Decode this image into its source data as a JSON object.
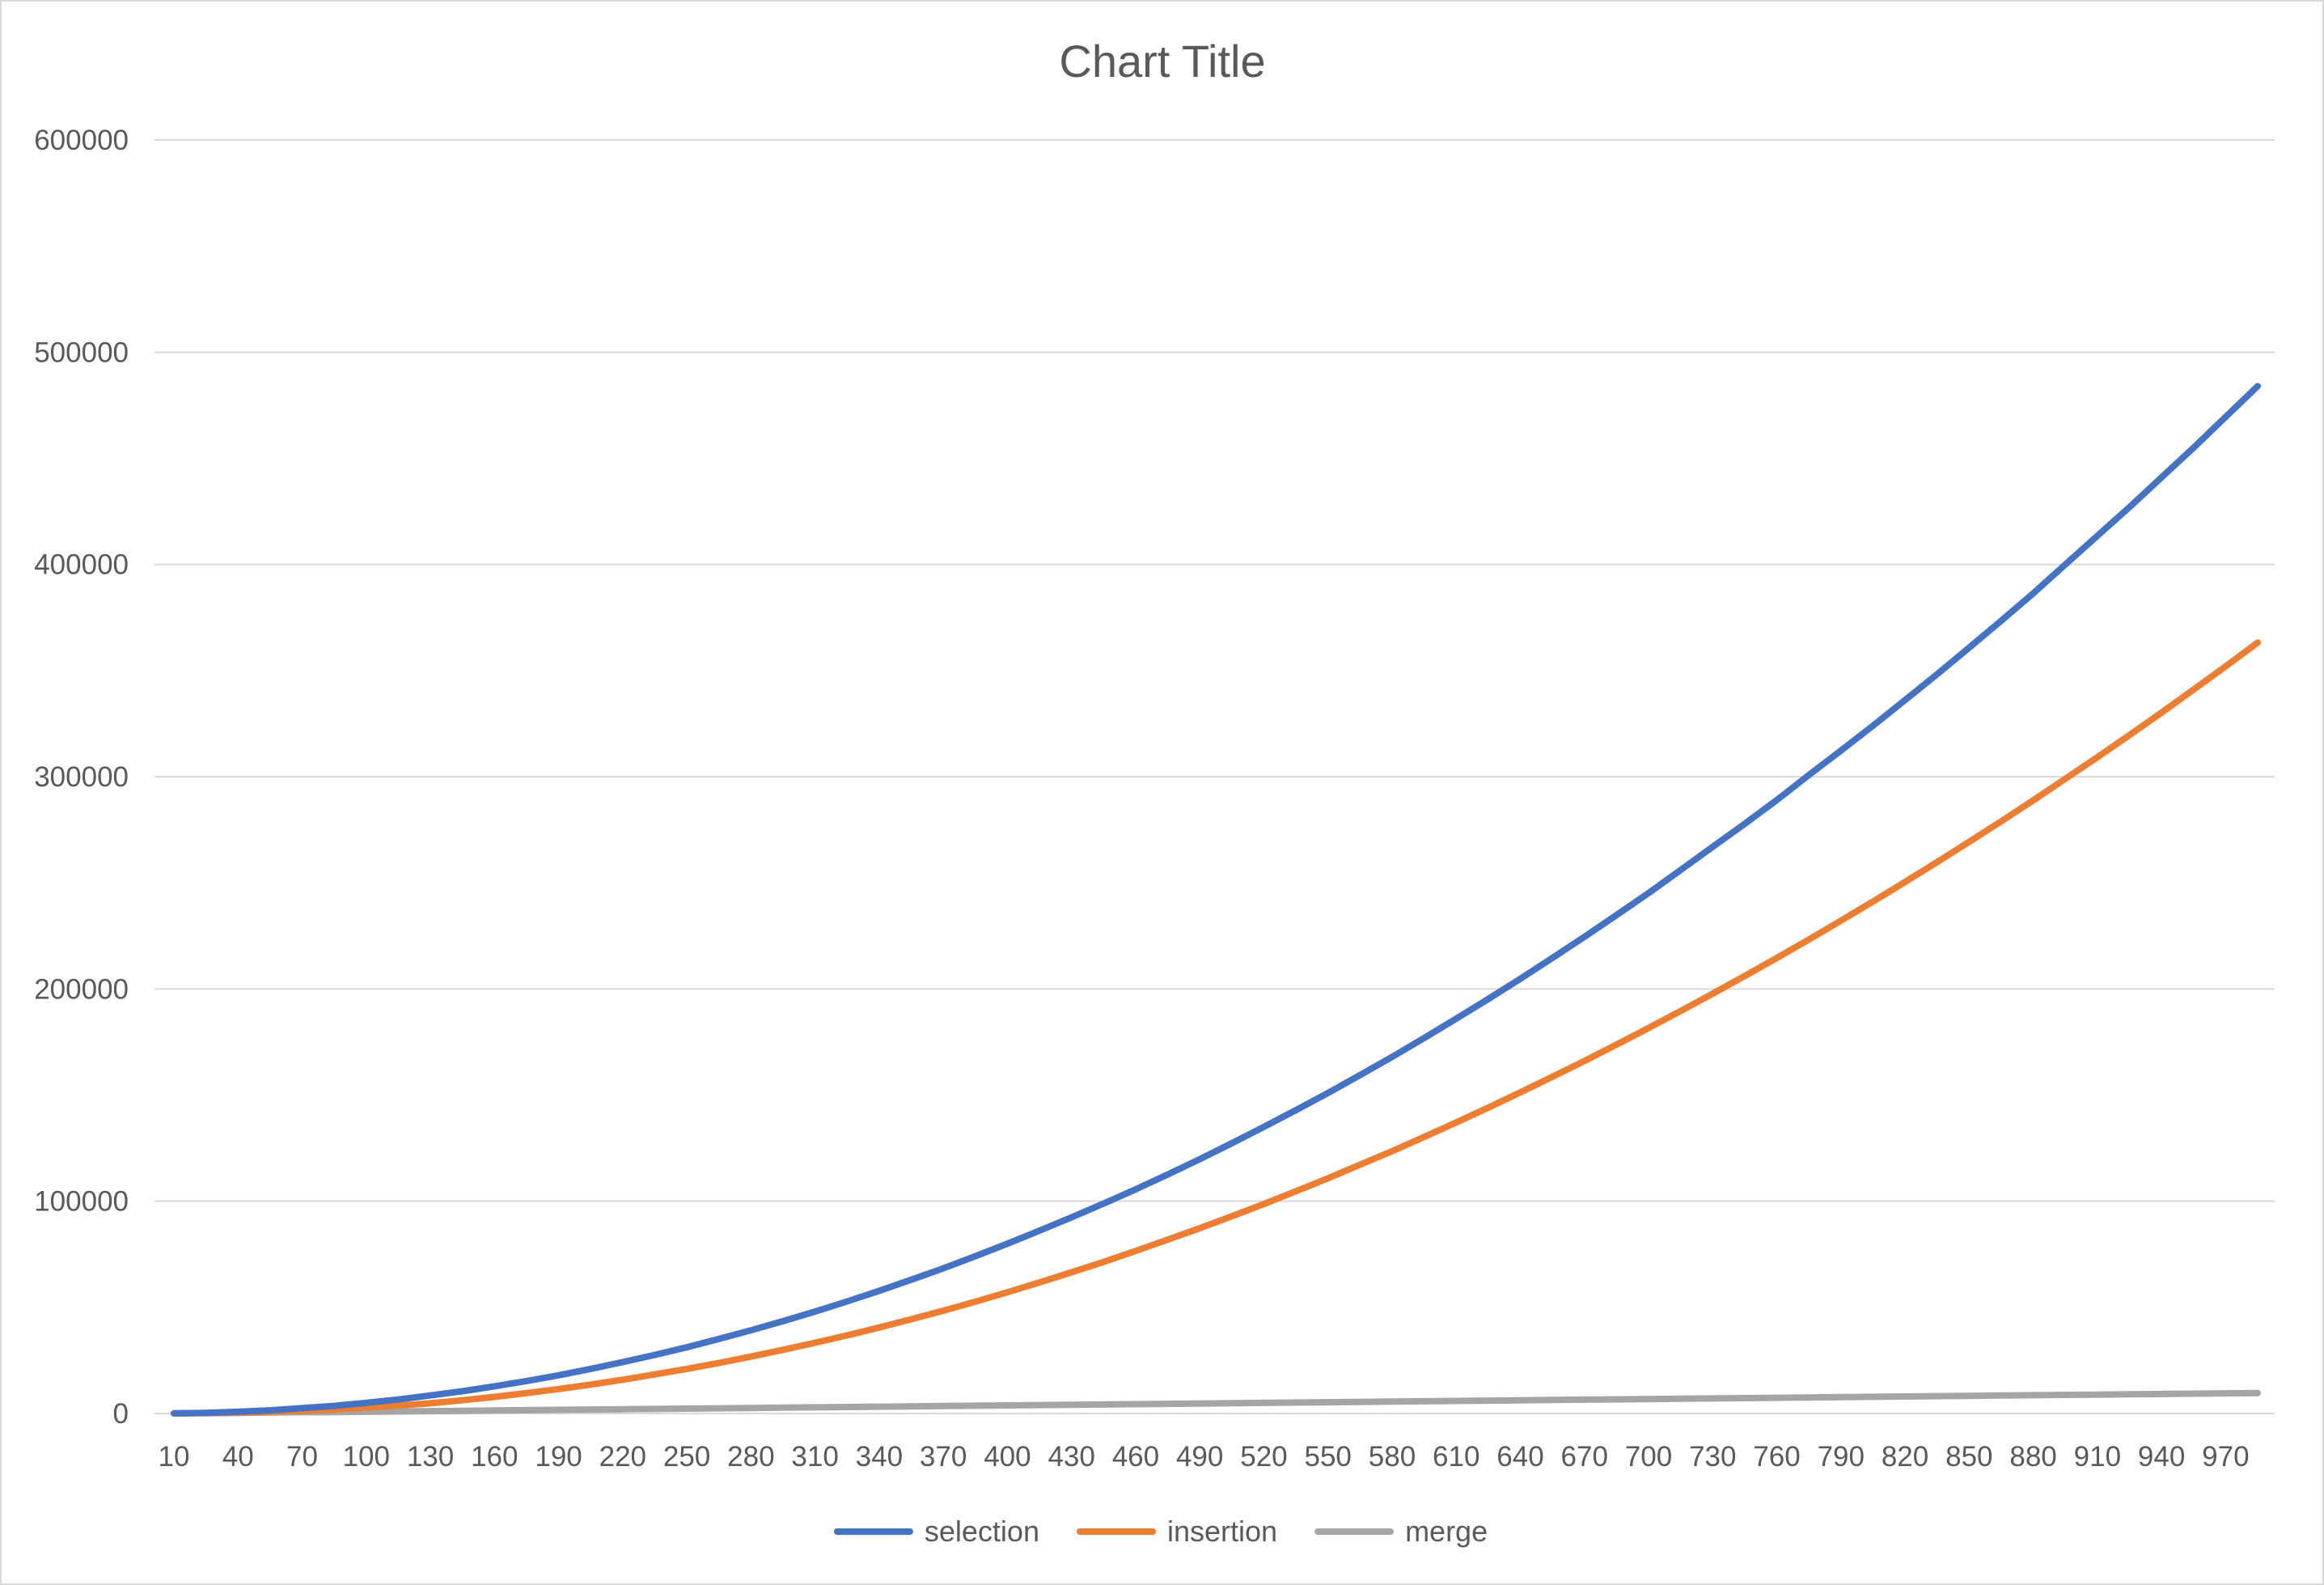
{
  "chart_data": {
    "type": "line",
    "title": "Chart Title",
    "xlabel": "",
    "ylabel": "",
    "ylim": [
      0,
      600000
    ],
    "y_ticks": [
      "0",
      "100000",
      "200000",
      "300000",
      "400000",
      "500000",
      "600000"
    ],
    "x": [
      10,
      25,
      40,
      55,
      70,
      85,
      100,
      115,
      130,
      145,
      160,
      175,
      190,
      205,
      220,
      235,
      250,
      265,
      280,
      295,
      310,
      325,
      340,
      355,
      370,
      385,
      400,
      415,
      430,
      445,
      460,
      475,
      490,
      505,
      520,
      535,
      550,
      565,
      580,
      595,
      610,
      625,
      640,
      655,
      670,
      685,
      700,
      715,
      730,
      745,
      760,
      775,
      790,
      805,
      820,
      835,
      850,
      865,
      880,
      895,
      910,
      925,
      940,
      955,
      970,
      985
    ],
    "x_tick_labels": [
      "10",
      "40",
      "70",
      "100",
      "130",
      "160",
      "190",
      "220",
      "250",
      "280",
      "310",
      "340",
      "370",
      "400",
      "430",
      "460",
      "490",
      "520",
      "550",
      "580",
      "610",
      "640",
      "670",
      "700",
      "730",
      "760",
      "790",
      "820",
      "850",
      "880",
      "910",
      "940",
      "970"
    ],
    "grid": true,
    "legend_position": "bottom",
    "series": [
      {
        "name": "selection",
        "color": "#4472c4",
        "values": [
          50,
          300,
          800,
          1500,
          2500,
          3600,
          5000,
          6600,
          8500,
          10500,
          12800,
          15300,
          18000,
          21000,
          24200,
          27600,
          31200,
          35100,
          39200,
          43500,
          48000,
          52800,
          57800,
          63000,
          68400,
          74100,
          80000,
          86100,
          92400,
          98900,
          105600,
          112600,
          119800,
          127300,
          135000,
          142900,
          151000,
          159400,
          168000,
          176900,
          186000,
          195300,
          204800,
          214600,
          224600,
          234800,
          245200,
          256000,
          267000,
          277800,
          289000,
          300800,
          312300,
          324000,
          336100,
          348300,
          360800,
          373500,
          386400,
          400000,
          413500,
          427000,
          441000,
          455000,
          469500,
          484000
        ]
      },
      {
        "name": "insertion",
        "color": "#ed7d31",
        "values": [
          30,
          150,
          400,
          800,
          1300,
          1900,
          2700,
          3700,
          4800,
          6200,
          7800,
          9600,
          11500,
          13600,
          15900,
          18400,
          21000,
          23800,
          26800,
          30000,
          33300,
          36800,
          40500,
          44400,
          48400,
          52700,
          57100,
          61700,
          66500,
          71400,
          76600,
          81900,
          87300,
          92900,
          98700,
          104700,
          110800,
          117200,
          123600,
          130300,
          137100,
          144100,
          151300,
          158600,
          166100,
          173800,
          181600,
          189600,
          197800,
          206100,
          214600,
          223300,
          232200,
          241200,
          250400,
          259800,
          269300,
          279000,
          288900,
          299000,
          309200,
          319600,
          330200,
          341000,
          352000,
          363200
        ]
      },
      {
        "name": "merge",
        "color": "#a5a5a5",
        "values": [
          40,
          200,
          300,
          500,
          600,
          700,
          800,
          950,
          1100,
          1250,
          1400,
          1550,
          1700,
          1850,
          2000,
          2150,
          2300,
          2450,
          2600,
          2750,
          2900,
          3050,
          3200,
          3350,
          3500,
          3650,
          3800,
          3950,
          4100,
          4250,
          4400,
          4550,
          4700,
          4850,
          5000,
          5150,
          5300,
          5450,
          5600,
          5750,
          5900,
          6050,
          6200,
          6350,
          6500,
          6650,
          6800,
          6950,
          7100,
          7250,
          7400,
          7550,
          7700,
          7850,
          8000,
          8150,
          8300,
          8450,
          8600,
          8750,
          8900,
          9050,
          9200,
          9350,
          9500,
          9650
        ]
      }
    ]
  }
}
